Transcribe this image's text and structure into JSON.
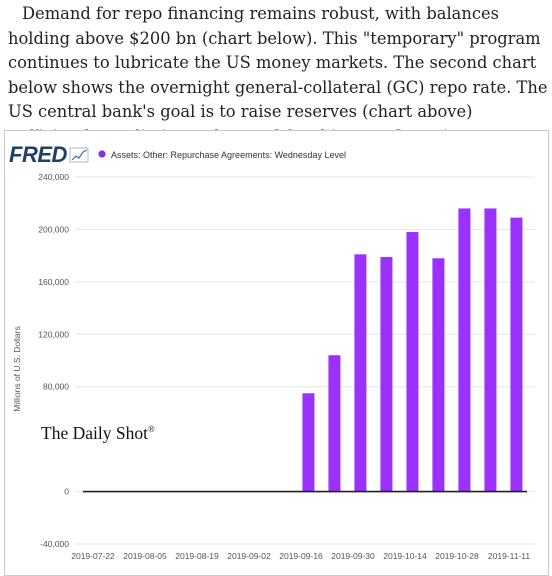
{
  "article": {
    "paragraph": "Demand for repo financing remains robust, with balances holding above $200 bn (chart below). This \"temporary\" program continues to lubricate the US money markets. The second chart below shows the overnight general-collateral (GC) repo rate. The US central bank's goal is to raise reserves (chart above) sufficiently to eliminate the need for this repo financing."
  },
  "branding": {
    "fred_logo": "FRED",
    "watermark": "The Daily Shot",
    "watermark_mark": "®"
  },
  "colors": {
    "bar": "#9b30ff",
    "legend_dot": "#8a2be2",
    "logo_navy": "#1f3f68",
    "axis_text": "#555555"
  },
  "chart_data": {
    "type": "bar",
    "legend": "Assets: Other: Repurchase Agreements: Wednesday Level",
    "ylabel": "Millions of U.S. Dollars",
    "ylim": [
      -40000,
      240000
    ],
    "yticks": [
      -40000,
      0,
      80000,
      120000,
      160000,
      200000,
      240000
    ],
    "ytick_labels": [
      "-40,000",
      "0",
      "80,000",
      "120,000",
      "160,000",
      "200,000",
      "240,000"
    ],
    "xtick_labels": [
      "2019-07-22",
      "2019-08-05",
      "2019-08-19",
      "2019-09-02",
      "2019-09-16",
      "2019-09-30",
      "2019-10-14",
      "2019-10-28",
      "2019-11-11"
    ],
    "categories": [
      "2019-07-17",
      "2019-07-24",
      "2019-07-31",
      "2019-08-07",
      "2019-08-14",
      "2019-08-21",
      "2019-08-28",
      "2019-09-04",
      "2019-09-11",
      "2019-09-18",
      "2019-09-25",
      "2019-10-02",
      "2019-10-09",
      "2019-10-16",
      "2019-10-23",
      "2019-10-30",
      "2019-11-06",
      "2019-11-13"
    ],
    "values": [
      0,
      0,
      0,
      0,
      0,
      0,
      0,
      0,
      0,
      75000,
      104000,
      181000,
      179000,
      198000,
      178000,
      216000,
      216000,
      209000
    ],
    "grid": true
  }
}
